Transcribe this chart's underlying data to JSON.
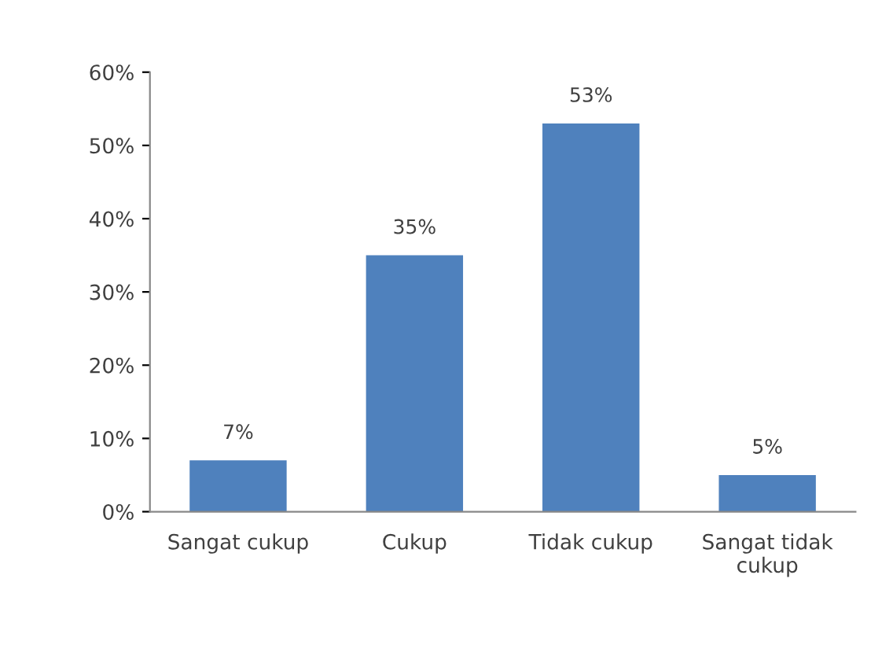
{
  "chart_data": {
    "type": "bar",
    "categories": [
      "Sangat cukup",
      "Cukup",
      "Tidak cukup",
      "Sangat tidak cukup"
    ],
    "values": [
      7,
      35,
      53,
      5
    ],
    "color": "#4f81bd",
    "value_labels": [
      "7%",
      "35%",
      "53%",
      "5%"
    ],
    "ylim": [
      0,
      60
    ],
    "yticks": [
      {
        "value": 0,
        "label": "0%"
      },
      {
        "value": 10,
        "label": "10%"
      },
      {
        "value": 20,
        "label": "20%"
      },
      {
        "value": 30,
        "label": "30%"
      },
      {
        "value": 40,
        "label": "40%"
      },
      {
        "value": 50,
        "label": "50%"
      },
      {
        "value": 60,
        "label": "60%"
      }
    ],
    "grid": false,
    "legend": false
  }
}
